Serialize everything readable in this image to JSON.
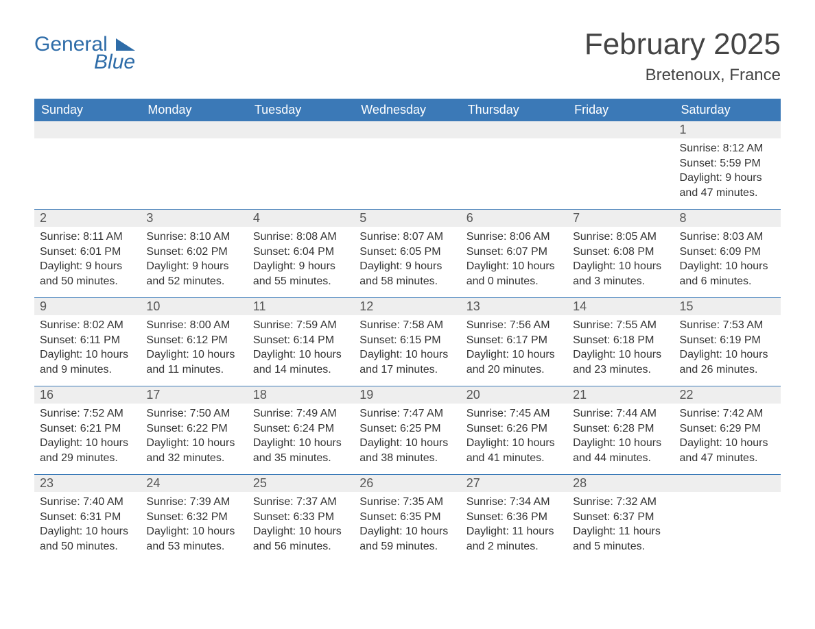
{
  "colors": {
    "header_bg": "#3b79b7",
    "header_text": "#ffffff",
    "daynum_bg": "#eeeeee",
    "daynum_text": "#555555",
    "body_text": "#333333",
    "week_sep": "#3b79b7",
    "logo": "#2e6ca8",
    "page_bg": "#ffffff"
  },
  "logo": {
    "line1": "General",
    "line2": "Blue"
  },
  "title": "February 2025",
  "location": "Bretenoux, France",
  "days_of_week": [
    "Sunday",
    "Monday",
    "Tuesday",
    "Wednesday",
    "Thursday",
    "Friday",
    "Saturday"
  ],
  "labels": {
    "sunrise": "Sunrise",
    "sunset": "Sunset",
    "daylight": "Daylight"
  },
  "weeks": [
    [
      null,
      null,
      null,
      null,
      null,
      null,
      {
        "n": "1",
        "sunrise": "8:12 AM",
        "sunset": "5:59 PM",
        "daylight": "9 hours and 47 minutes."
      }
    ],
    [
      {
        "n": "2",
        "sunrise": "8:11 AM",
        "sunset": "6:01 PM",
        "daylight": "9 hours and 50 minutes."
      },
      {
        "n": "3",
        "sunrise": "8:10 AM",
        "sunset": "6:02 PM",
        "daylight": "9 hours and 52 minutes."
      },
      {
        "n": "4",
        "sunrise": "8:08 AM",
        "sunset": "6:04 PM",
        "daylight": "9 hours and 55 minutes."
      },
      {
        "n": "5",
        "sunrise": "8:07 AM",
        "sunset": "6:05 PM",
        "daylight": "9 hours and 58 minutes."
      },
      {
        "n": "6",
        "sunrise": "8:06 AM",
        "sunset": "6:07 PM",
        "daylight": "10 hours and 0 minutes."
      },
      {
        "n": "7",
        "sunrise": "8:05 AM",
        "sunset": "6:08 PM",
        "daylight": "10 hours and 3 minutes."
      },
      {
        "n": "8",
        "sunrise": "8:03 AM",
        "sunset": "6:09 PM",
        "daylight": "10 hours and 6 minutes."
      }
    ],
    [
      {
        "n": "9",
        "sunrise": "8:02 AM",
        "sunset": "6:11 PM",
        "daylight": "10 hours and 9 minutes."
      },
      {
        "n": "10",
        "sunrise": "8:00 AM",
        "sunset": "6:12 PM",
        "daylight": "10 hours and 11 minutes."
      },
      {
        "n": "11",
        "sunrise": "7:59 AM",
        "sunset": "6:14 PM",
        "daylight": "10 hours and 14 minutes."
      },
      {
        "n": "12",
        "sunrise": "7:58 AM",
        "sunset": "6:15 PM",
        "daylight": "10 hours and 17 minutes."
      },
      {
        "n": "13",
        "sunrise": "7:56 AM",
        "sunset": "6:17 PM",
        "daylight": "10 hours and 20 minutes."
      },
      {
        "n": "14",
        "sunrise": "7:55 AM",
        "sunset": "6:18 PM",
        "daylight": "10 hours and 23 minutes."
      },
      {
        "n": "15",
        "sunrise": "7:53 AM",
        "sunset": "6:19 PM",
        "daylight": "10 hours and 26 minutes."
      }
    ],
    [
      {
        "n": "16",
        "sunrise": "7:52 AM",
        "sunset": "6:21 PM",
        "daylight": "10 hours and 29 minutes."
      },
      {
        "n": "17",
        "sunrise": "7:50 AM",
        "sunset": "6:22 PM",
        "daylight": "10 hours and 32 minutes."
      },
      {
        "n": "18",
        "sunrise": "7:49 AM",
        "sunset": "6:24 PM",
        "daylight": "10 hours and 35 minutes."
      },
      {
        "n": "19",
        "sunrise": "7:47 AM",
        "sunset": "6:25 PM",
        "daylight": "10 hours and 38 minutes."
      },
      {
        "n": "20",
        "sunrise": "7:45 AM",
        "sunset": "6:26 PM",
        "daylight": "10 hours and 41 minutes."
      },
      {
        "n": "21",
        "sunrise": "7:44 AM",
        "sunset": "6:28 PM",
        "daylight": "10 hours and 44 minutes."
      },
      {
        "n": "22",
        "sunrise": "7:42 AM",
        "sunset": "6:29 PM",
        "daylight": "10 hours and 47 minutes."
      }
    ],
    [
      {
        "n": "23",
        "sunrise": "7:40 AM",
        "sunset": "6:31 PM",
        "daylight": "10 hours and 50 minutes."
      },
      {
        "n": "24",
        "sunrise": "7:39 AM",
        "sunset": "6:32 PM",
        "daylight": "10 hours and 53 minutes."
      },
      {
        "n": "25",
        "sunrise": "7:37 AM",
        "sunset": "6:33 PM",
        "daylight": "10 hours and 56 minutes."
      },
      {
        "n": "26",
        "sunrise": "7:35 AM",
        "sunset": "6:35 PM",
        "daylight": "10 hours and 59 minutes."
      },
      {
        "n": "27",
        "sunrise": "7:34 AM",
        "sunset": "6:36 PM",
        "daylight": "11 hours and 2 minutes."
      },
      {
        "n": "28",
        "sunrise": "7:32 AM",
        "sunset": "6:37 PM",
        "daylight": "11 hours and 5 minutes."
      },
      null
    ]
  ]
}
